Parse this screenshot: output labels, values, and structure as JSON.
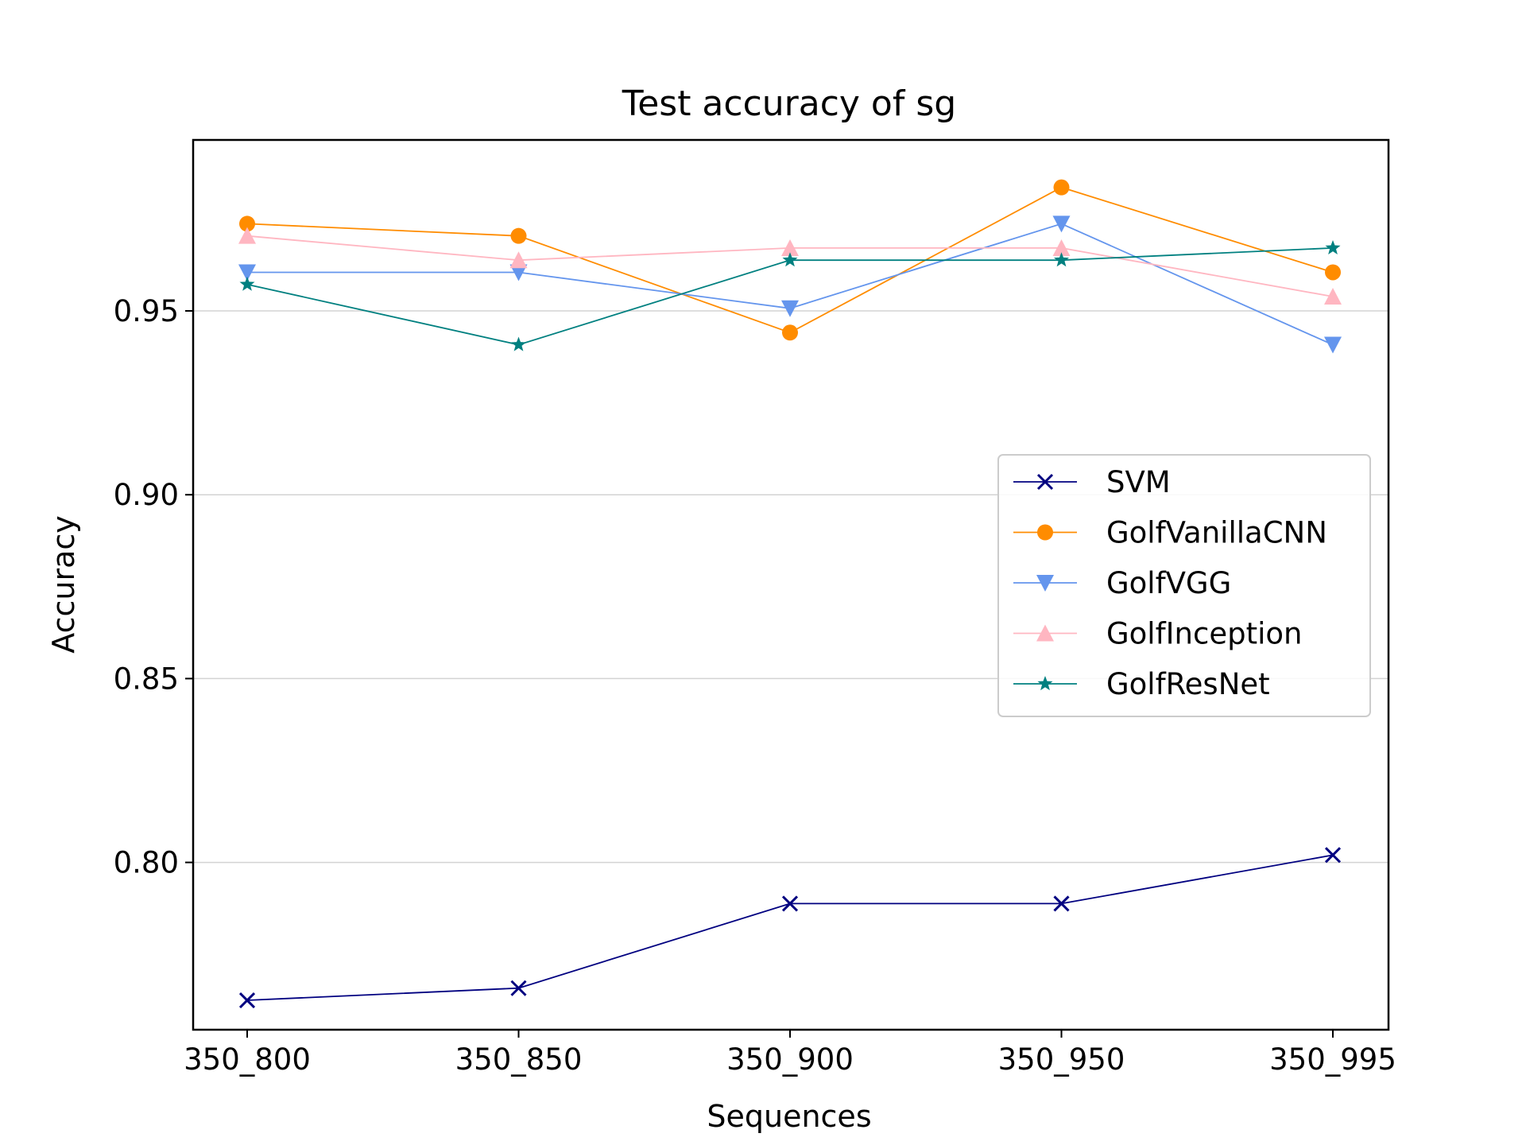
{
  "chart_data": {
    "type": "line",
    "title": "Test accuracy of sg",
    "xlabel": "Sequences",
    "ylabel": "Accuracy",
    "categories": [
      "350_800",
      "350_850",
      "350_900",
      "350_950",
      "350_995"
    ],
    "ylim": [
      0.7545,
      0.9965
    ],
    "yticks": [
      0.8,
      0.85,
      0.9,
      0.95
    ],
    "ytick_labels": [
      "0.80",
      "0.85",
      "0.90",
      "0.95"
    ],
    "grid": "horizontal",
    "legend_position": "center-right",
    "series": [
      {
        "name": "SVM",
        "color": "#000080",
        "marker": "x",
        "values": [
          0.7625,
          0.7658,
          0.7888,
          0.7888,
          0.802
        ]
      },
      {
        "name": "GolfVanillaCNN",
        "color": "#ff8c00",
        "marker": "circle",
        "values": [
          0.9737,
          0.9704,
          0.9441,
          0.9836,
          0.9605
        ]
      },
      {
        "name": "GolfVGG",
        "color": "#6495ed",
        "marker": "triangle-down",
        "values": [
          0.9605,
          0.9605,
          0.9507,
          0.9737,
          0.9408
        ]
      },
      {
        "name": "GolfInception",
        "color": "#ffb6c1",
        "marker": "triangle-up",
        "values": [
          0.9704,
          0.9638,
          0.9671,
          0.9671,
          0.9539
        ]
      },
      {
        "name": "GolfResNet",
        "color": "#008080",
        "marker": "star",
        "values": [
          0.9572,
          0.9408,
          0.9638,
          0.9638,
          0.9671
        ]
      }
    ]
  }
}
